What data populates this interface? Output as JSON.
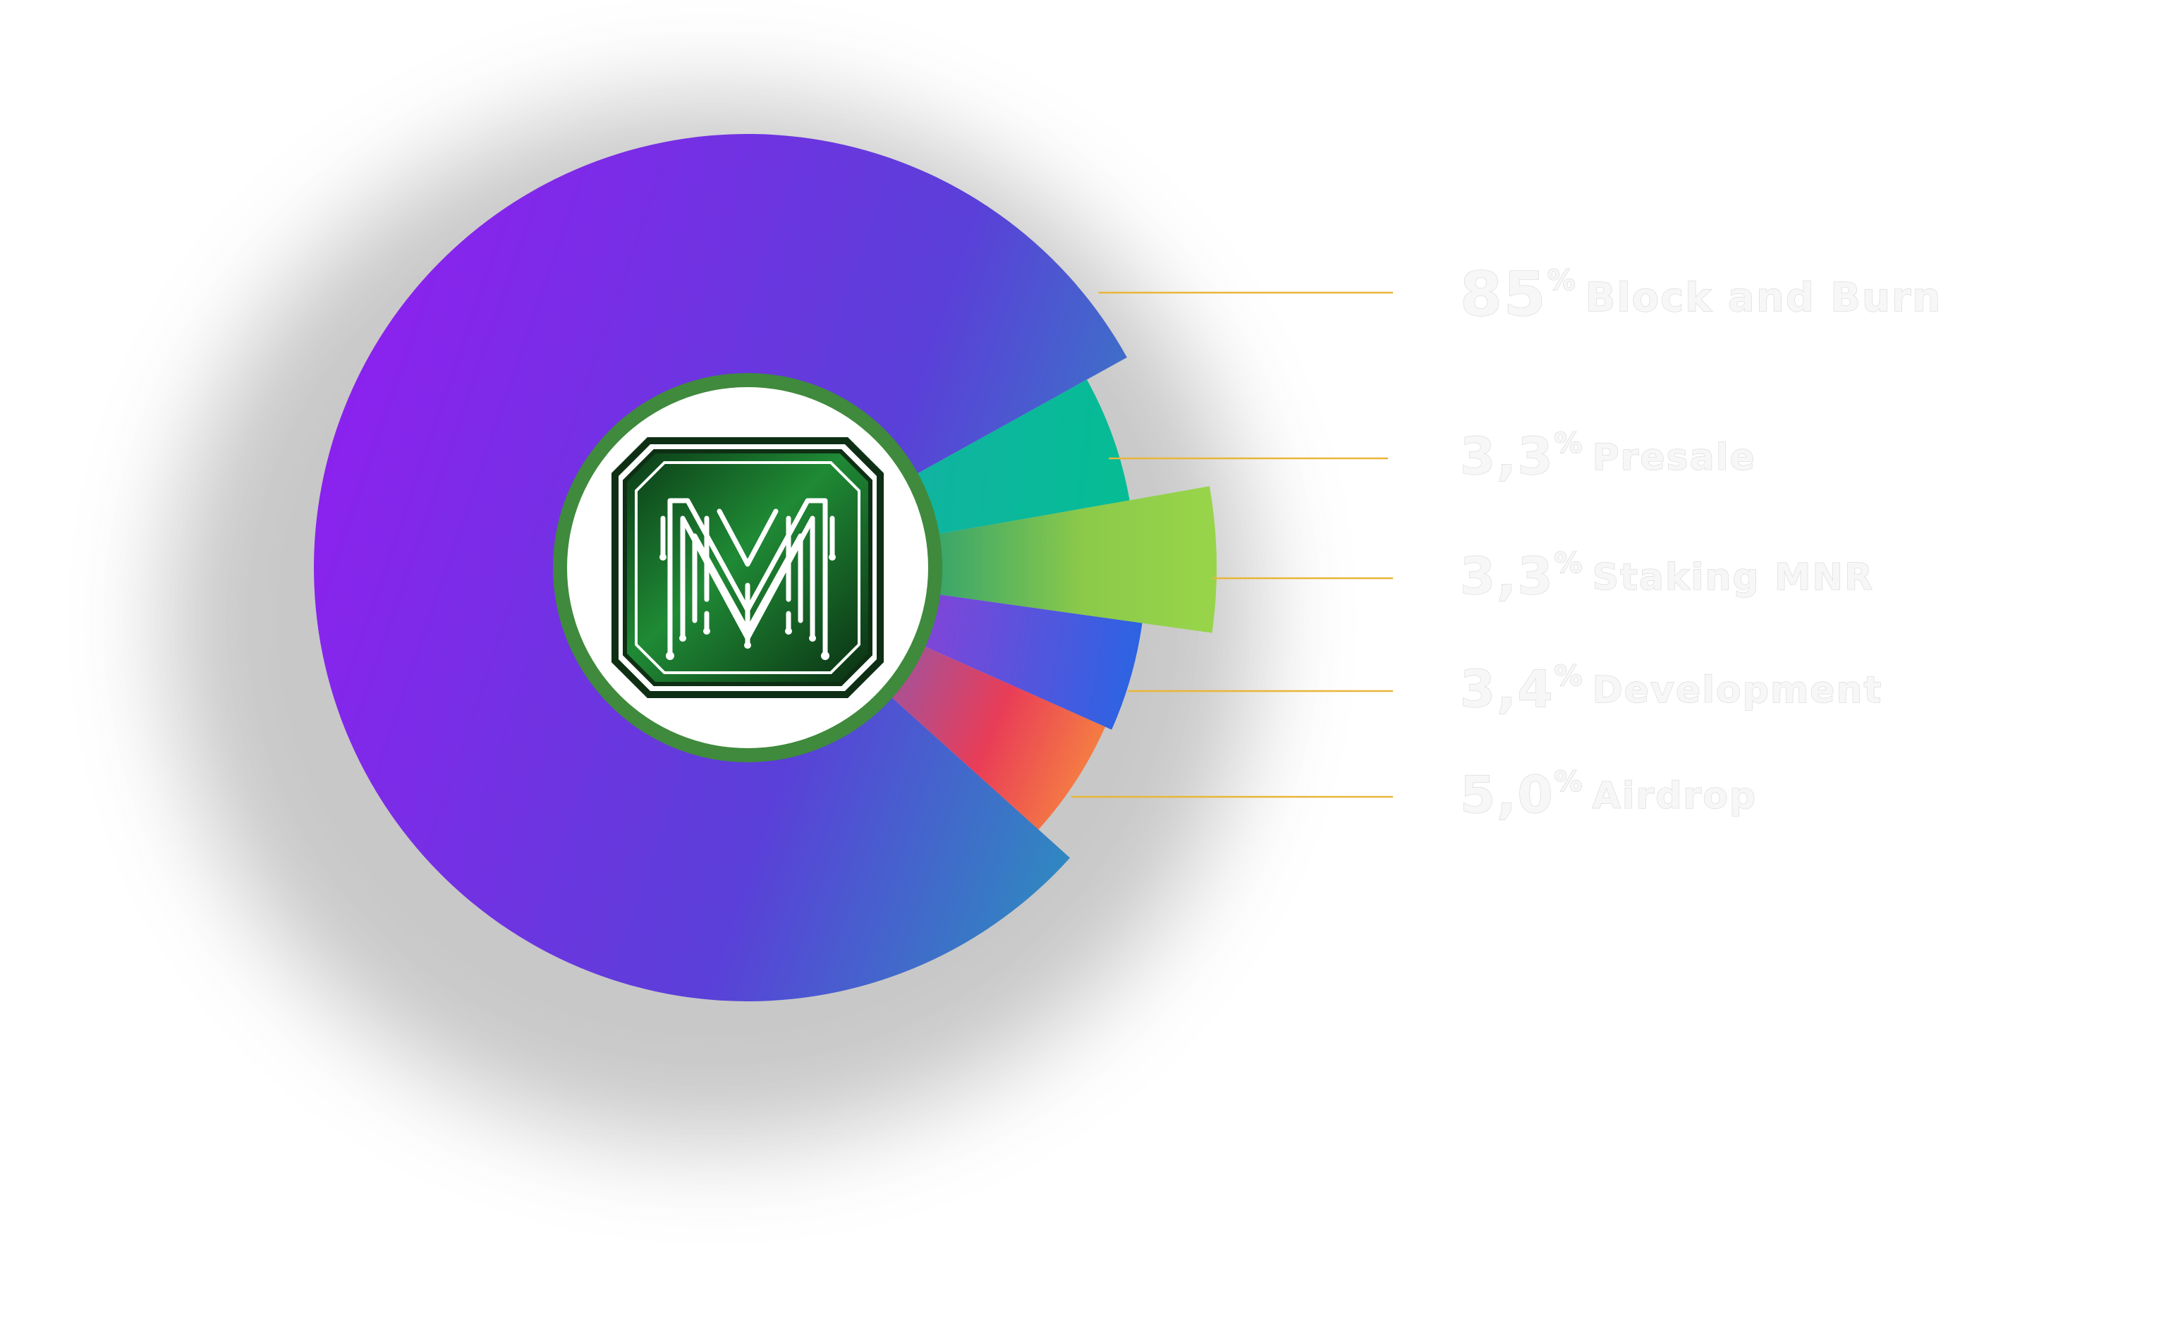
{
  "chart_data": {
    "type": "pie",
    "title": "",
    "categories": [
      "Block and Burn",
      "Presale",
      "Staking MNR",
      "Development",
      "Airdrop"
    ],
    "values": [
      85,
      3.3,
      3.3,
      3.4,
      5.0
    ],
    "labels": [
      "85",
      "3,3",
      "3,3",
      "3,4",
      "5,0"
    ],
    "percent_sign": "%",
    "colors": [
      "#8b22ee",
      "#07b89a",
      "#8fcf46",
      "#2a62e6",
      "#f8a23a"
    ],
    "legend_position": "right",
    "center_logo": "M"
  }
}
